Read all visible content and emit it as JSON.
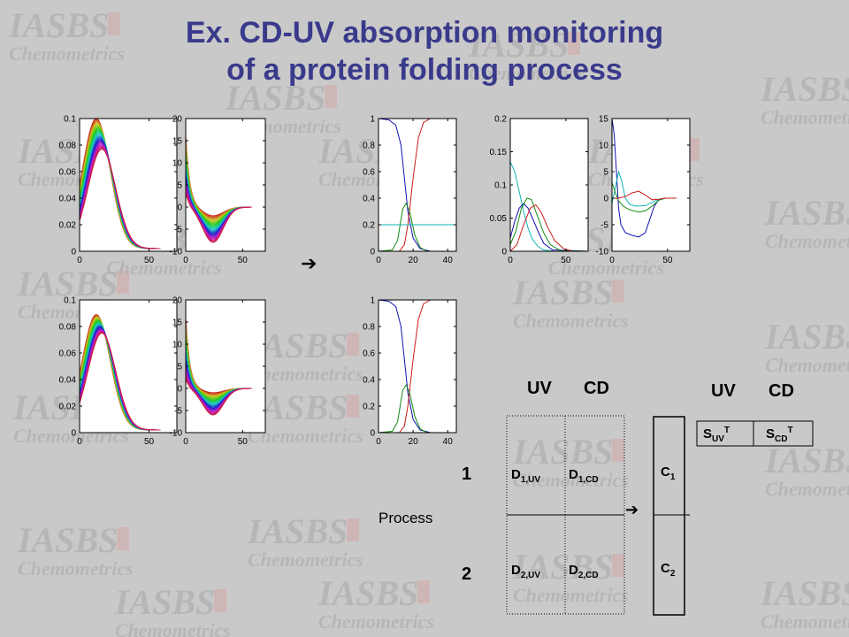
{
  "watermark": {
    "line1": "IASBS",
    "line2": "Chemometrics"
  },
  "title": {
    "line1": "Ex. CD-UV absorption monitoring",
    "line2": "of a protein folding process"
  },
  "arrows": {
    "main": "➔",
    "small": "➔"
  },
  "matrix": {
    "col_uv": "UV",
    "col_cd": "CD",
    "spec_col_uv": "UV",
    "spec_col_cd": "CD",
    "row1": "1",
    "row2": "2",
    "process_label": "Process",
    "d1uv": {
      "base": "D",
      "sub": "1,UV"
    },
    "d1cd": {
      "base": "D",
      "sub": "1,CD"
    },
    "d2uv": {
      "base": "D",
      "sub": "2,UV"
    },
    "d2cd": {
      "base": "D",
      "sub": "2,CD"
    },
    "c1": {
      "base": "C",
      "sub": "1"
    },
    "c2": {
      "base": "C",
      "sub": "2"
    },
    "suv": {
      "base": "S",
      "sub": "UV",
      "sup": "T"
    },
    "scd": {
      "base": "S",
      "sub": "CD",
      "sup": "T"
    }
  },
  "chart_data": [
    {
      "id": "uv1",
      "type": "line",
      "xticks": [
        "0",
        "50"
      ],
      "xlim": [
        0,
        70
      ],
      "yticks": [
        "0",
        "0.02",
        "0.04",
        "0.06",
        "0.08",
        "0.1"
      ],
      "ylim": [
        0,
        0.1
      ],
      "family": {
        "kind": "uv",
        "count": 30,
        "peak_x": [
          12,
          16
        ],
        "peak_y": [
          0.098,
          0.075
        ],
        "width": 16,
        "x_end": 58
      }
    },
    {
      "id": "cd1",
      "type": "line",
      "xticks": [
        "0",
        "50"
      ],
      "xlim": [
        0,
        70
      ],
      "yticks": [
        "-10",
        "-5",
        "0",
        "5",
        "10",
        "15",
        "20"
      ],
      "ylim": [
        -10,
        20
      ],
      "family": {
        "kind": "cd",
        "count": 30,
        "pos_peak": [
          16,
          3
        ],
        "neg_depth": [
          -2,
          -8
        ],
        "x_end": 58
      }
    },
    {
      "id": "conc1",
      "type": "line",
      "xticks": [
        "0",
        "20",
        "40"
      ],
      "xlim": [
        0,
        45
      ],
      "yticks": [
        "0",
        "0.2",
        "0.4",
        "0.6",
        "0.8",
        "1"
      ],
      "ylim": [
        0,
        1
      ],
      "series": [
        {
          "name": "",
          "color": "#1010b0",
          "points": [
            [
              0,
              1
            ],
            [
              6,
              0.99
            ],
            [
              10,
              0.95
            ],
            [
              13,
              0.8
            ],
            [
              15,
              0.55
            ],
            [
              17,
              0.3
            ],
            [
              20,
              0.1
            ],
            [
              24,
              0.02
            ],
            [
              30,
              0
            ],
            [
              45,
              0
            ]
          ]
        },
        {
          "name": "",
          "color": "#cc1a1a",
          "points": [
            [
              0,
              0
            ],
            [
              12,
              0
            ],
            [
              15,
              0.05
            ],
            [
              17,
              0.2
            ],
            [
              20,
              0.55
            ],
            [
              23,
              0.85
            ],
            [
              26,
              0.97
            ],
            [
              30,
              1
            ],
            [
              45,
              1
            ]
          ]
        },
        {
          "name": "",
          "color": "#138a13",
          "points": [
            [
              0,
              0
            ],
            [
              8,
              0.01
            ],
            [
              11,
              0.08
            ],
            [
              14,
              0.32
            ],
            [
              16,
              0.36
            ],
            [
              18,
              0.3
            ],
            [
              21,
              0.12
            ],
            [
              24,
              0.03
            ],
            [
              28,
              0
            ],
            [
              45,
              0
            ]
          ]
        },
        {
          "name": "",
          "color": "#12b5b5",
          "points": [
            [
              0,
              0.2
            ],
            [
              45,
              0.2
            ]
          ]
        }
      ]
    },
    {
      "id": "suv_plot",
      "type": "line",
      "xticks": [
        "0",
        "50"
      ],
      "xlim": [
        0,
        70
      ],
      "yticks": [
        "0",
        "0.05",
        "0.1",
        "0.15",
        "0.2"
      ],
      "ylim": [
        0,
        0.2
      ],
      "series": [
        {
          "name": "",
          "color": "#12b5b5",
          "points": [
            [
              0,
              0.135
            ],
            [
              4,
              0.12
            ],
            [
              8,
              0.09
            ],
            [
              12,
              0.06
            ],
            [
              16,
              0.035
            ],
            [
              20,
              0.018
            ],
            [
              25,
              0.007
            ],
            [
              30,
              0.002
            ],
            [
              40,
              0
            ],
            [
              70,
              0
            ]
          ]
        },
        {
          "name": "",
          "color": "#1010b0",
          "points": [
            [
              0,
              0.02
            ],
            [
              4,
              0.045
            ],
            [
              8,
              0.065
            ],
            [
              12,
              0.072
            ],
            [
              16,
              0.065
            ],
            [
              20,
              0.05
            ],
            [
              25,
              0.03
            ],
            [
              30,
              0.012
            ],
            [
              38,
              0.002
            ],
            [
              70,
              0
            ]
          ]
        },
        {
          "name": "",
          "color": "#138a13",
          "points": [
            [
              0,
              0.01
            ],
            [
              5,
              0.03
            ],
            [
              10,
              0.065
            ],
            [
              15,
              0.08
            ],
            [
              19,
              0.078
            ],
            [
              24,
              0.055
            ],
            [
              30,
              0.028
            ],
            [
              36,
              0.01
            ],
            [
              45,
              0.001
            ],
            [
              70,
              0
            ]
          ]
        },
        {
          "name": "",
          "color": "#cc1a1a",
          "points": [
            [
              0,
              0
            ],
            [
              6,
              0.01
            ],
            [
              12,
              0.04
            ],
            [
              18,
              0.065
            ],
            [
              23,
              0.07
            ],
            [
              28,
              0.058
            ],
            [
              34,
              0.035
            ],
            [
              40,
              0.016
            ],
            [
              48,
              0.004
            ],
            [
              56,
              0
            ],
            [
              70,
              0
            ]
          ]
        }
      ]
    },
    {
      "id": "scd_plot",
      "type": "line",
      "xticks": [
        "0",
        "50"
      ],
      "xlim": [
        0,
        70
      ],
      "yticks": [
        "-10",
        "-5",
        "0",
        "5",
        "10",
        "15"
      ],
      "ylim": [
        -10,
        15
      ],
      "series": [
        {
          "name": "",
          "color": "#1010b0",
          "points": [
            [
              0,
              15
            ],
            [
              2,
              12
            ],
            [
              4,
              5
            ],
            [
              6,
              -2
            ],
            [
              8,
              -5
            ],
            [
              12,
              -6.5
            ],
            [
              18,
              -7
            ],
            [
              24,
              -7.3
            ],
            [
              30,
              -6.5
            ],
            [
              34,
              -4
            ],
            [
              38,
              -1.5
            ],
            [
              42,
              -0.3
            ],
            [
              48,
              0
            ],
            [
              58,
              0
            ]
          ]
        },
        {
          "name": "",
          "color": "#12b5b5",
          "points": [
            [
              0,
              -1
            ],
            [
              3,
              2
            ],
            [
              6,
              5
            ],
            [
              9,
              3
            ],
            [
              12,
              0
            ],
            [
              16,
              -1.2
            ],
            [
              22,
              -1.5
            ],
            [
              30,
              -1.4
            ],
            [
              36,
              -0.8
            ],
            [
              42,
              -0.2
            ],
            [
              48,
              0
            ],
            [
              58,
              0
            ]
          ]
        },
        {
          "name": "",
          "color": "#138a13",
          "points": [
            [
              0,
              3
            ],
            [
              3,
              1
            ],
            [
              6,
              -0.5
            ],
            [
              10,
              -1.5
            ],
            [
              16,
              -2.2
            ],
            [
              24,
              -2.6
            ],
            [
              30,
              -2.4
            ],
            [
              36,
              -1.5
            ],
            [
              42,
              -0.4
            ],
            [
              48,
              0
            ],
            [
              58,
              0
            ]
          ]
        },
        {
          "name": "",
          "color": "#cc1a1a",
          "points": [
            [
              0,
              0
            ],
            [
              6,
              0
            ],
            [
              12,
              0.3
            ],
            [
              18,
              1
            ],
            [
              24,
              1.3
            ],
            [
              30,
              0.6
            ],
            [
              36,
              -0.3
            ],
            [
              42,
              -0.2
            ],
            [
              48,
              0
            ],
            [
              58,
              0
            ]
          ]
        }
      ]
    },
    {
      "id": "uv2",
      "type": "line",
      "xticks": [
        "0",
        "50"
      ],
      "xlim": [
        0,
        70
      ],
      "yticks": [
        "0",
        "0.02",
        "0.04",
        "0.06",
        "0.08",
        "0.1"
      ],
      "ylim": [
        0,
        0.1
      ],
      "family": {
        "kind": "uv",
        "count": 30,
        "peak_x": [
          12,
          16
        ],
        "peak_y": [
          0.087,
          0.073
        ],
        "width": 16,
        "x_end": 58
      }
    },
    {
      "id": "cd2",
      "type": "line",
      "xticks": [
        "0",
        "50"
      ],
      "xlim": [
        0,
        70
      ],
      "yticks": [
        "-10",
        "-5",
        "0",
        "5",
        "10",
        "15",
        "20"
      ],
      "ylim": [
        -10,
        20
      ],
      "family": {
        "kind": "cd",
        "count": 30,
        "pos_peak": [
          16,
          2
        ],
        "neg_depth": [
          -1,
          -6
        ],
        "x_end": 58
      }
    },
    {
      "id": "conc2",
      "type": "line",
      "xticks": [
        "0",
        "20",
        "40"
      ],
      "xlim": [
        0,
        45
      ],
      "yticks": [
        "0",
        "0.2",
        "0.4",
        "0.6",
        "0.8",
        "1"
      ],
      "ylim": [
        0,
        1
      ],
      "series": [
        {
          "name": "",
          "color": "#1010b0",
          "points": [
            [
              0,
              1
            ],
            [
              6,
              0.99
            ],
            [
              10,
              0.95
            ],
            [
              13,
              0.8
            ],
            [
              15,
              0.55
            ],
            [
              17,
              0.3
            ],
            [
              20,
              0.1
            ],
            [
              24,
              0.02
            ],
            [
              30,
              0
            ],
            [
              45,
              0
            ]
          ]
        },
        {
          "name": "",
          "color": "#cc1a1a",
          "points": [
            [
              0,
              0
            ],
            [
              12,
              0
            ],
            [
              15,
              0.05
            ],
            [
              17,
              0.2
            ],
            [
              20,
              0.55
            ],
            [
              23,
              0.85
            ],
            [
              26,
              0.97
            ],
            [
              30,
              1
            ],
            [
              45,
              1
            ]
          ]
        },
        {
          "name": "",
          "color": "#138a13",
          "points": [
            [
              0,
              0
            ],
            [
              8,
              0.01
            ],
            [
              11,
              0.08
            ],
            [
              14,
              0.32
            ],
            [
              16,
              0.36
            ],
            [
              18,
              0.3
            ],
            [
              21,
              0.12
            ],
            [
              24,
              0.03
            ],
            [
              28,
              0
            ],
            [
              45,
              0
            ]
          ]
        }
      ]
    }
  ]
}
